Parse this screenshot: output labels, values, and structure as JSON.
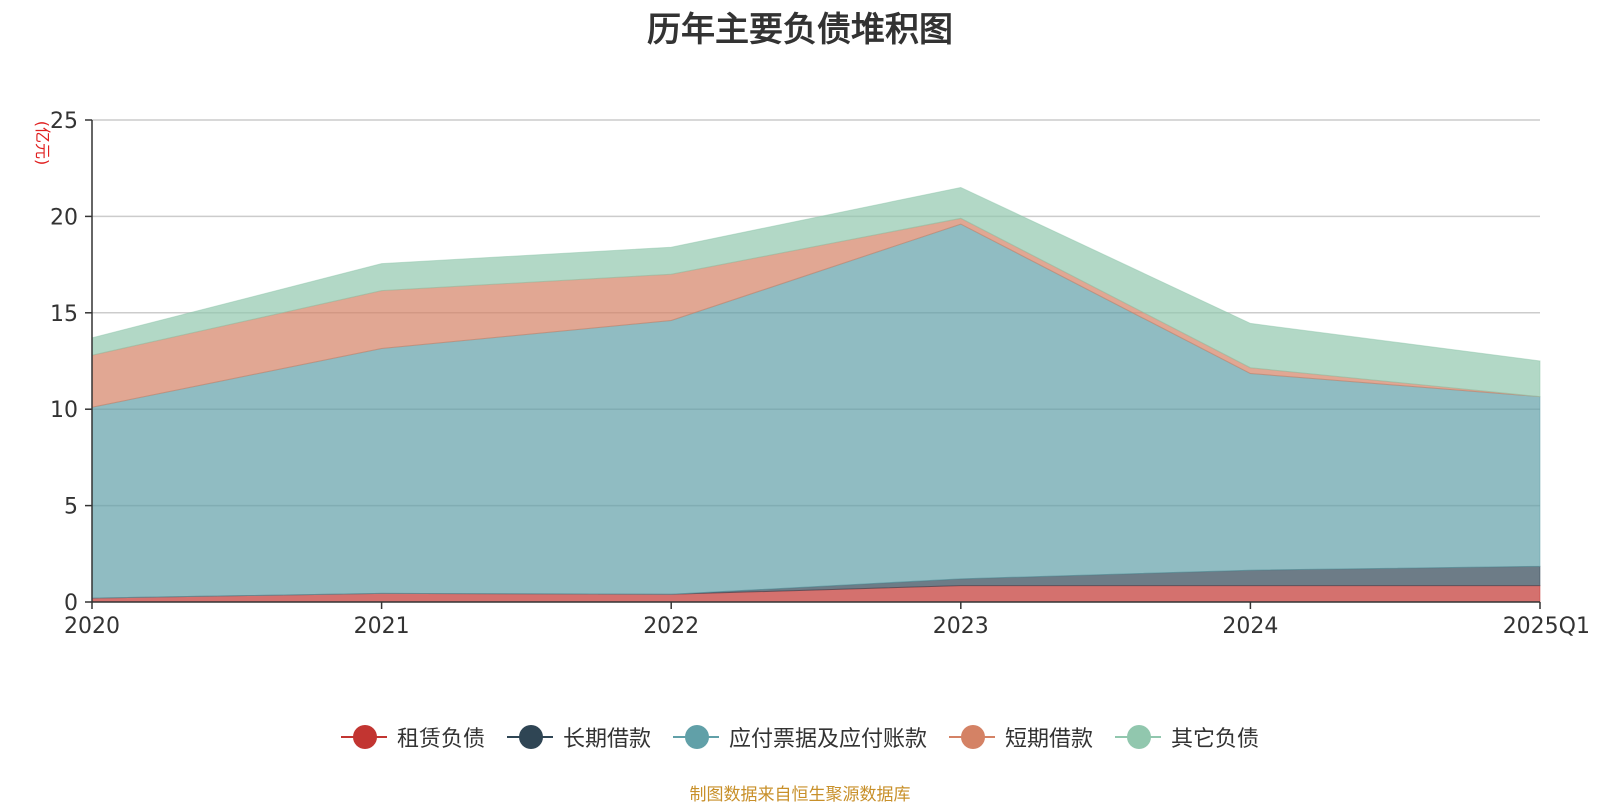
{
  "chart_data": {
    "type": "area",
    "stacked": true,
    "title": "历年主要负债堆积图",
    "ylabel": "(亿元)",
    "xlabel": "",
    "categories": [
      "2020",
      "2021",
      "2022",
      "2023",
      "2024",
      "2025Q1"
    ],
    "ylim": [
      0,
      25
    ],
    "yticks": [
      0,
      5,
      10,
      15,
      20,
      25
    ],
    "grid": true,
    "legend_position": "bottom",
    "series": [
      {
        "name": "租赁负债",
        "color": "#c23531",
        "values": [
          0.2,
          0.45,
          0.4,
          0.85,
          0.85,
          0.85
        ]
      },
      {
        "name": "长期借款",
        "color": "#2f4554",
        "values": [
          0.0,
          0.0,
          0.0,
          0.35,
          0.8,
          1.0
        ]
      },
      {
        "name": "应付票据及应付账款",
        "color": "#61a0a8",
        "values": [
          9.9,
          12.7,
          14.2,
          18.4,
          10.2,
          8.8
        ]
      },
      {
        "name": "短期借款",
        "color": "#d48265",
        "values": [
          2.7,
          3.0,
          2.4,
          0.3,
          0.3,
          0.0
        ]
      },
      {
        "name": "其它负债",
        "color": "#91c7ae",
        "values": [
          0.9,
          1.4,
          1.4,
          1.6,
          2.3,
          1.85
        ]
      }
    ],
    "source": "制图数据来自恒生聚源数据库"
  }
}
